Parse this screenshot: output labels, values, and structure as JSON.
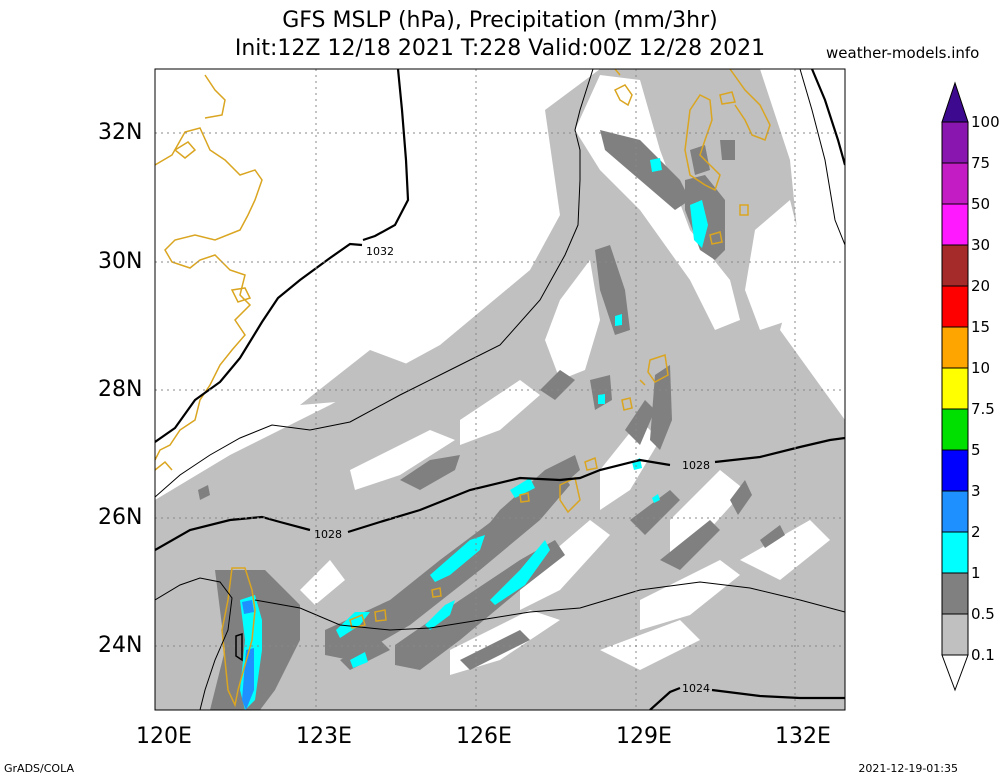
{
  "header": {
    "title_line1": "GFS MSLP (hPa), Precipitation (mm/3hr)",
    "title_line2": "Init:12Z 12/18 2021 T:228 Valid:00Z 12/28 2021",
    "site": "weather-models.info"
  },
  "map": {
    "lat_labels": [
      "32N",
      "30N",
      "28N",
      "26N",
      "24N"
    ],
    "lon_labels": [
      "120E",
      "123E",
      "126E",
      "129E",
      "132E"
    ],
    "isobar_labels": [
      "1032",
      "1028",
      "1028",
      "1024"
    ]
  },
  "colorbar": {
    "labels": [
      "100",
      "75",
      "50",
      "30",
      "20",
      "15",
      "10",
      "7.5",
      "5",
      "3",
      "2",
      "1",
      "0.5",
      "0.1"
    ],
    "colors": [
      "#3d0a8f",
      "#8a16b0",
      "#c41cc4",
      "#ff19ff",
      "#a52a2a",
      "#ff0000",
      "#ffa500",
      "#ffff00",
      "#00e000",
      "#0000ff",
      "#1e90ff",
      "#00ffff",
      "#808080",
      "#c0c0c0",
      "#ffffff"
    ]
  },
  "footer": {
    "left": "GrADS/COLA",
    "right": "2021-12-19-01:35"
  }
}
